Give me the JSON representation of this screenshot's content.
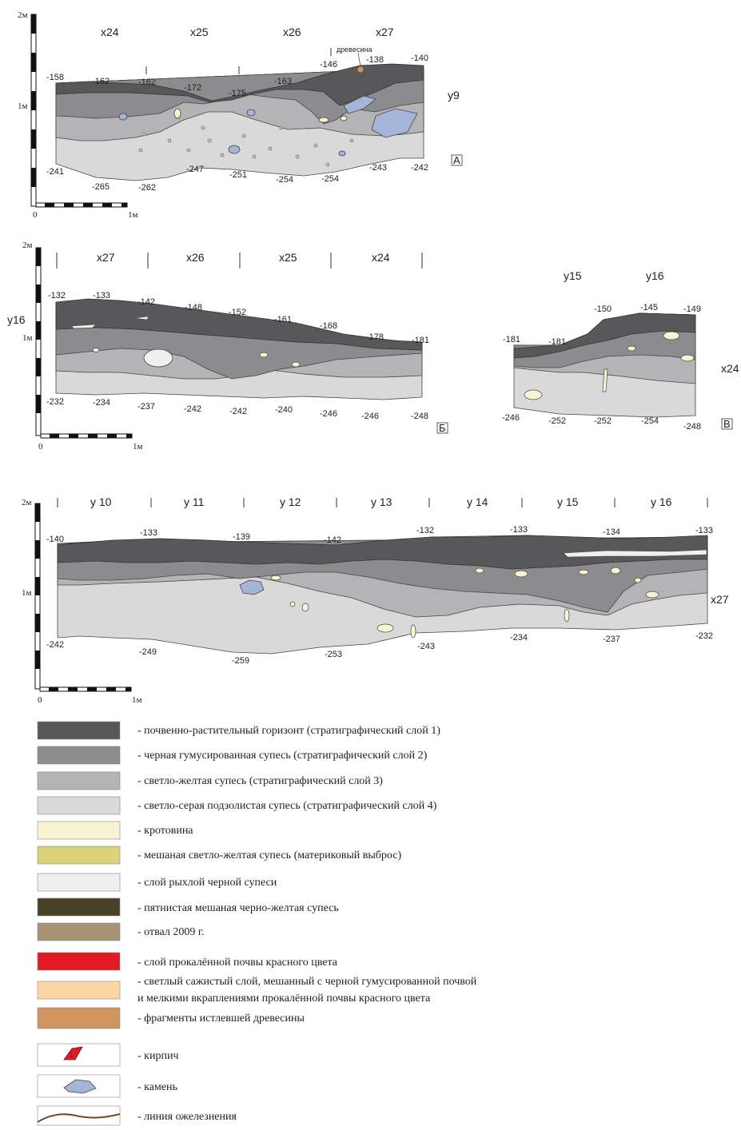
{
  "scale": {
    "top": "2м",
    "mid": "1м",
    "zero": "0",
    "end": "1м"
  },
  "section_a": {
    "columns": [
      "x24",
      "x25",
      "x26",
      "x27"
    ],
    "letter": "А",
    "side_label": "y9",
    "annotation": "древесина",
    "top_marks": [
      "-158",
      "-162",
      "-162",
      "-172",
      "-175",
      "-163",
      "-146",
      "-138",
      "-140"
    ],
    "bottom_marks": [
      "-241",
      "-265",
      "-262",
      "-247",
      "-251",
      "-254",
      "-254",
      "-243",
      "-242"
    ]
  },
  "section_b": {
    "columns": [
      "x27",
      "x26",
      "x25",
      "x24"
    ],
    "letter": "Б",
    "side_label": "y16",
    "top_marks": [
      "-132",
      "-133",
      "-142",
      "-148",
      "-152",
      "-161",
      "-168",
      "-178",
      "-181"
    ],
    "bottom_marks": [
      "-232",
      "-234",
      "-237",
      "-242",
      "-242",
      "-240",
      "-246",
      "-246",
      "-248"
    ]
  },
  "section_v": {
    "columns": [
      "y15",
      "y16"
    ],
    "letter": "В",
    "side_label": "x24",
    "top_marks": [
      "-181",
      "-181",
      "-150",
      "-145",
      "-149"
    ],
    "bottom_marks": [
      "-246",
      "-252",
      "-252",
      "-254",
      "-248"
    ]
  },
  "section_c": {
    "columns": [
      "y 10",
      "y 11",
      "y 12",
      "y 13",
      "y 14",
      "y 15",
      "y 16"
    ],
    "side_label": "x27",
    "top_marks": [
      "-140",
      "-133",
      "-139",
      "-142",
      "-132",
      "-133",
      "-134",
      "-133"
    ],
    "bottom_marks": [
      "-242",
      "-249",
      "-259",
      "-253",
      "-243",
      "-234",
      "-237",
      "-232"
    ]
  },
  "legend": [
    {
      "color": "#58585a",
      "text": "- почвенно-растительный горизонт (стратиграфический слой 1)"
    },
    {
      "color": "#8c8c8e",
      "text": "- черная гумусированная супесь (стратиграфический слой 2)"
    },
    {
      "color": "#b4b4b6",
      "text": "- светло-желтая супесь (стратиграфический слой 3)"
    },
    {
      "color": "#d9d9da",
      "text": "- светло-серая подзолистая супесь (стратиграфический слой 4)"
    },
    {
      "color": "#f8f3d2",
      "text": "- кротовина"
    },
    {
      "color": "#dcd27a",
      "text": "- мешаная светло-желтая супесь (материковый выброс)"
    },
    {
      "color": "#efefef",
      "text": "- слой рыхлой черной супеси"
    },
    {
      "color": "#4a4129",
      "text": "- пятнистая мешаная черно-желтая супесь"
    },
    {
      "color": "#a89276",
      "text": "- отвал 2009 г."
    },
    {
      "color": "#e01b24",
      "text": "- слой прокалённой почвы красного цвета"
    },
    {
      "color": "#fbd7a6",
      "text": "- светлый сажистый слой, мешанный с черной гумусированной почвой",
      "text2": "и мелкими вкраплениями прокалённой почвы красного цвета"
    },
    {
      "color": "#d1955e",
      "text": "- фрагменты истлевшей древесины"
    },
    {
      "icon": "brick-icon",
      "text": "- кирпич"
    },
    {
      "icon": "stone-icon",
      "text": "- камень"
    },
    {
      "icon": "iron-line-icon",
      "text": "- линия ожелезнения"
    }
  ]
}
